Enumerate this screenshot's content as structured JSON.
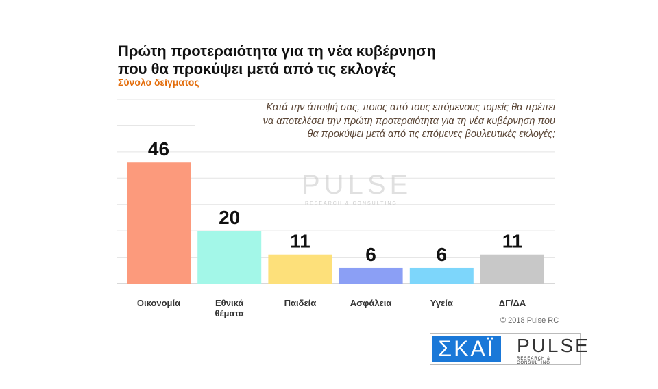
{
  "title_line1": "Πρώτη προτεραιότητα για τη νέα κυβέρνηση",
  "title_line2": "που θα προκύψει μετά από τις εκλογές",
  "subtitle": "Σύνολο δείγματος",
  "question_line1": "Κατά την άποψή σας, ποιος από τους επόμενους τομείς θα πρέπει",
  "question_line2": "να αποτελέσει την πρώτη προτεραιότητα για τη νέα κυβέρνηση που",
  "question_line3": "θα προκύψει μετά από τις επόμενες βουλευτικές εκλογές;",
  "copyright": "© 2018 Pulse RC",
  "logos": {
    "skai": "ΣΚΑΪ",
    "pulse": "PULSE",
    "pulse_sub": "RESEARCH & CONSULTING"
  },
  "watermark": {
    "text": "PULSE",
    "sub": "RESEARCH & CONSULTING"
  },
  "chart_data": {
    "type": "bar",
    "categories": [
      "Οικονομία",
      "Εθνικά θέματα",
      "Παιδεία",
      "Ασφάλεια",
      "Υγεία",
      "ΔΓ/ΔΑ"
    ],
    "values": [
      46,
      20,
      11,
      6,
      6,
      11
    ],
    "colors": [
      "#fc9a7c",
      "#a3f7e8",
      "#fde07a",
      "#8b9ff5",
      "#7dd6fb",
      "#c8c8c8"
    ],
    "ylim": [
      0,
      70
    ],
    "grid": true,
    "data_labels": true
  }
}
